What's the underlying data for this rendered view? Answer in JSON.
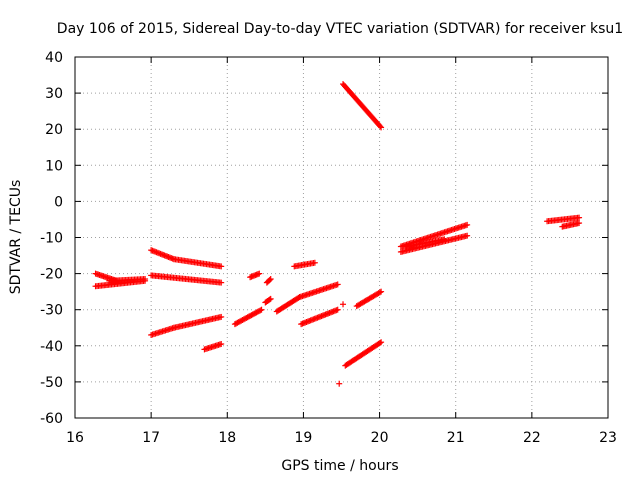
{
  "chart_data": {
    "type": "scatter",
    "title": "Day 106 of 2015, Sidereal Day-to-day VTEC variation (SDTVAR) for receiver ksu1",
    "xlabel": "GPS time / hours",
    "ylabel": "SDTVAR / TECUs",
    "xlim": [
      16,
      23
    ],
    "ylim": [
      -60,
      40
    ],
    "x_ticks": [
      "16",
      "17",
      "18",
      "19",
      "20",
      "21",
      "22",
      "23"
    ],
    "y_ticks": [
      "40",
      "30",
      "20",
      "10",
      "0",
      "-10",
      "-20",
      "-30",
      "-40",
      "-50",
      "-60"
    ],
    "grid": true,
    "marker": "+",
    "color": "#ff0000",
    "tracks": [
      {
        "x0": 16.27,
        "y0": -20.0,
        "x1": 16.55,
        "y1": -22.0
      },
      {
        "x0": 16.27,
        "y0": -23.5,
        "x1": 16.92,
        "y1": -22.0
      },
      {
        "x0": 16.45,
        "y0": -22.0,
        "x1": 16.92,
        "y1": -21.5
      },
      {
        "x0": 17.0,
        "y0": -13.5,
        "x1": 17.3,
        "y1": -16.0
      },
      {
        "x0": 17.3,
        "y0": -16.0,
        "x1": 17.92,
        "y1": -18.0
      },
      {
        "x0": 17.0,
        "y0": -20.5,
        "x1": 17.92,
        "y1": -22.5
      },
      {
        "x0": 17.0,
        "y0": -37.0,
        "x1": 17.3,
        "y1": -35.0
      },
      {
        "x0": 17.3,
        "y0": -35.0,
        "x1": 17.92,
        "y1": -32.0
      },
      {
        "x0": 17.7,
        "y0": -41.0,
        "x1": 17.92,
        "y1": -39.5
      },
      {
        "x0": 18.1,
        "y0": -34.0,
        "x1": 18.45,
        "y1": -30.0
      },
      {
        "x0": 18.3,
        "y0": -21.0,
        "x1": 18.42,
        "y1": -20.0
      },
      {
        "x0": 18.52,
        "y0": -22.5,
        "x1": 18.57,
        "y1": -21.5
      },
      {
        "x0": 18.5,
        "y0": -28.0,
        "x1": 18.57,
        "y1": -27.0
      },
      {
        "x0": 18.65,
        "y0": -30.5,
        "x1": 18.95,
        "y1": -26.5
      },
      {
        "x0": 18.95,
        "y0": -26.5,
        "x1": 19.45,
        "y1": -23.0
      },
      {
        "x0": 18.88,
        "y0": -18.0,
        "x1": 19.15,
        "y1": -17.0
      },
      {
        "x0": 18.97,
        "y0": -34.0,
        "x1": 19.45,
        "y1": -30.0
      },
      {
        "x0": 19.52,
        "y0": 32.5,
        "x1": 20.02,
        "y1": 20.5
      },
      {
        "x0": 19.55,
        "y0": -45.5,
        "x1": 20.02,
        "y1": -39.0
      },
      {
        "x0": 19.7,
        "y0": -29.0,
        "x1": 20.02,
        "y1": -25.0
      },
      {
        "x0": 20.28,
        "y0": -12.5,
        "x1": 21.15,
        "y1": -6.5
      },
      {
        "x0": 20.28,
        "y0": -14.0,
        "x1": 21.15,
        "y1": -9.5
      },
      {
        "x0": 20.35,
        "y0": -12.5,
        "x1": 20.85,
        "y1": -10.5
      },
      {
        "x0": 22.2,
        "y0": -5.5,
        "x1": 22.62,
        "y1": -4.5
      },
      {
        "x0": 22.4,
        "y0": -7.0,
        "x1": 22.62,
        "y1": -6.0
      }
    ],
    "points": [
      {
        "x": 19.47,
        "y": -50.5
      },
      {
        "x": 19.52,
        "y": -28.5
      }
    ]
  }
}
